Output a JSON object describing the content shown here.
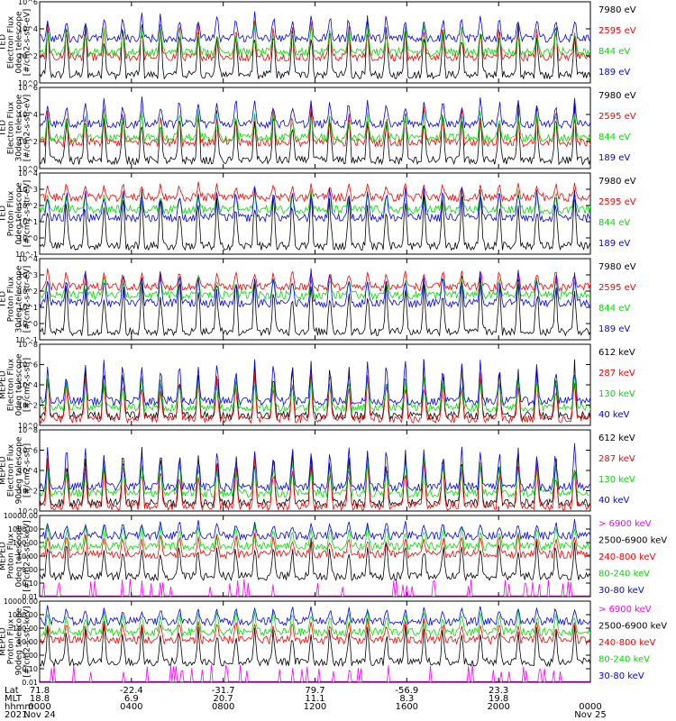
{
  "chart_data": [
    {
      "type": "line",
      "ylabel": [
        "TED",
        "Electron Flux",
        "0deg telescope",
        "[#/cm2-s-str-eV]"
      ],
      "yscale": "log",
      "ylim": [
        1,
        1000000
      ],
      "yticks": [
        "10^0",
        "10^2",
        "10^4",
        "10^6"
      ],
      "legend": [
        {
          "label": "7980 eV",
          "color": "#000000"
        },
        {
          "label": "2595 eV",
          "color": "#ff0000"
        },
        {
          "label": "844 eV",
          "color": "#00dd00"
        },
        {
          "label": "189 eV",
          "color": "#0000ff"
        }
      ]
    },
    {
      "type": "line",
      "ylabel": [
        "TED",
        "Electron Flux",
        "30deg telescope",
        "[#/cm2-s-str-eV]"
      ],
      "yscale": "log",
      "ylim": [
        1,
        1000000
      ],
      "yticks": [
        "10^0",
        "10^2",
        "10^4",
        "10^6"
      ],
      "legend": [
        {
          "label": "7980 eV",
          "color": "#000000"
        },
        {
          "label": "2595 eV",
          "color": "#ff0000"
        },
        {
          "label": "844 eV",
          "color": "#00dd00"
        },
        {
          "label": "189 eV",
          "color": "#0000ff"
        }
      ]
    },
    {
      "type": "line",
      "ylabel": [
        "TED",
        "Proton Flux",
        "0deg telescope",
        "[#/cm2-s-str-eV]"
      ],
      "yscale": "log",
      "ylim": [
        0.1,
        10000
      ],
      "yticks": [
        "10^-1",
        "10^0",
        "10^1",
        "10^2",
        "10^3",
        "10^4"
      ],
      "legend": [
        {
          "label": "7980 eV",
          "color": "#000000"
        },
        {
          "label": "2595 eV",
          "color": "#ff0000"
        },
        {
          "label": "844 eV",
          "color": "#00dd00"
        },
        {
          "label": "189 eV",
          "color": "#0000ff"
        }
      ]
    },
    {
      "type": "line",
      "ylabel": [
        "TED",
        "Proton Flux",
        "30deg telescope",
        "[#/cm2-s-str-eV]"
      ],
      "yscale": "log",
      "ylim": [
        0.1,
        10000
      ],
      "yticks": [
        "10^-1",
        "10^0",
        "10^1",
        "10^2",
        "10^3",
        "10^4"
      ],
      "legend": [
        {
          "label": "7980 eV",
          "color": "#000000"
        },
        {
          "label": "2595 eV",
          "color": "#ff0000"
        },
        {
          "label": "844 eV",
          "color": "#00dd00"
        },
        {
          "label": "189 eV",
          "color": "#0000ff"
        }
      ]
    },
    {
      "type": "line",
      "ylabel": [
        "MEPED",
        "Electron Flux",
        "0deg telescope",
        "[#/cm2-s-str]"
      ],
      "yscale": "log",
      "ylim": [
        1,
        100000000
      ],
      "yticks": [
        "10^0",
        "10^2",
        "10^4",
        "10^6",
        "10^8"
      ],
      "legend": [
        {
          "label": "612 keV",
          "color": "#000000"
        },
        {
          "label": "287 keV",
          "color": "#ff0000"
        },
        {
          "label": "130 keV",
          "color": "#00dd00"
        },
        {
          "label": "40 keV",
          "color": "#0000ff"
        }
      ]
    },
    {
      "type": "line",
      "ylabel": [
        "MEPED",
        "Electron Flux",
        "90deg telescope",
        "[#/cm2-s-str]"
      ],
      "yscale": "log",
      "ylim": [
        1,
        100000000
      ],
      "yticks": [
        "10^0",
        "10^2",
        "10^4",
        "10^6",
        "10^8"
      ],
      "legend": [
        {
          "label": "612 keV",
          "color": "#000000"
        },
        {
          "label": "287 keV",
          "color": "#ff0000"
        },
        {
          "label": "130 keV",
          "color": "#00dd00"
        },
        {
          "label": "40 keV",
          "color": "#0000ff"
        }
      ]
    },
    {
      "type": "line",
      "ylabel": [
        "MEPED",
        "Proton Flux",
        "0deg telescope",
        "[#/cm2-s-str-keV]"
      ],
      "yscale": "log",
      "ylim": [
        0.01,
        10000
      ],
      "yticks": [
        "0.01",
        "0.10",
        "1.00",
        "10.00",
        "100.00",
        "1000.00",
        "10000.00"
      ],
      "legend": [
        {
          "label": "> 6900 keV",
          "color": "#ff00ff"
        },
        {
          "label": "2500-6900 keV",
          "color": "#000000"
        },
        {
          "label": "240-800 keV",
          "color": "#ff0000"
        },
        {
          "label": "80-240 keV",
          "color": "#00dd00"
        },
        {
          "label": "30-80 keV",
          "color": "#0000ff"
        }
      ]
    },
    {
      "type": "line",
      "ylabel": [
        "MEPED",
        "Proton Flux",
        "90deg telescope",
        "[#/cm2-s-str-keV]"
      ],
      "yscale": "log",
      "ylim": [
        0.01,
        10000
      ],
      "yticks": [
        "0.01",
        "0.10",
        "1.00",
        "10.00",
        "100.00",
        "1000.00",
        "10000.00"
      ],
      "legend": [
        {
          "label": "> 6900 keV",
          "color": "#ff00ff"
        },
        {
          "label": "2500-6900 keV",
          "color": "#000000"
        },
        {
          "label": "240-800 keV",
          "color": "#ff0000"
        },
        {
          "label": "80-240 keV",
          "color": "#00dd00"
        },
        {
          "label": "30-80 keV",
          "color": "#0000ff"
        }
      ]
    }
  ],
  "x_axis": {
    "row_labels": [
      "Lat",
      "MLT",
      "hhmm",
      "2021"
    ],
    "columns": [
      {
        "hours": 0,
        "lat": "71.8",
        "mlt": "18.8",
        "hhmm": "0000",
        "date": "Nov 24"
      },
      {
        "hours": 4,
        "lat": "-22.4",
        "mlt": "6.9",
        "hhmm": "0400",
        "date": ""
      },
      {
        "hours": 8,
        "lat": "-31.7",
        "mlt": "20.7",
        "hhmm": "0800",
        "date": ""
      },
      {
        "hours": 12,
        "lat": "79.7",
        "mlt": "11.1",
        "hhmm": "1200",
        "date": ""
      },
      {
        "hours": 16,
        "lat": "-56.9",
        "mlt": "8.3",
        "hhmm": "1600",
        "date": ""
      },
      {
        "hours": 20,
        "lat": "23.3",
        "mlt": "19.8",
        "hhmm": "2000",
        "date": ""
      },
      {
        "hours": 24,
        "lat": "",
        "mlt": "",
        "hhmm": "0000",
        "date": "Nov 25"
      }
    ],
    "xlim_hours": [
      0,
      24
    ]
  }
}
